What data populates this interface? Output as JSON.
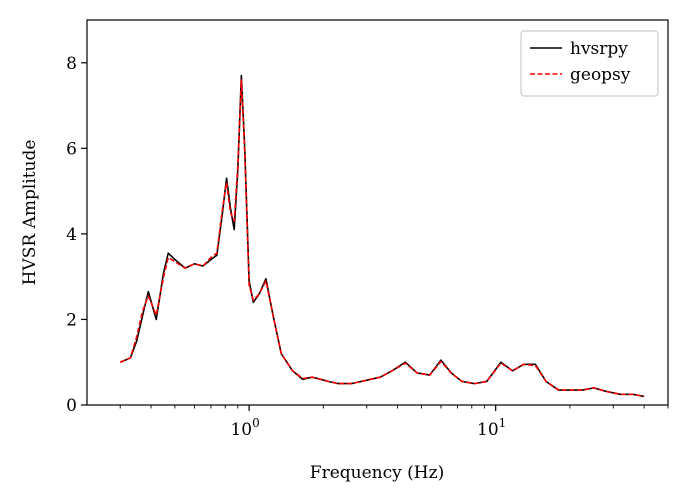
{
  "chart_data": {
    "type": "line",
    "title": "",
    "xlabel": "Frequency (Hz)",
    "ylabel": "HVSR Amplitude",
    "xscale": "log",
    "xlim": [
      0.22,
      50
    ],
    "ylim": [
      0,
      9
    ],
    "x_tick_values": [
      1,
      10
    ],
    "x_ticks": [
      {
        "base": "10",
        "exp": "0"
      },
      {
        "base": "10",
        "exp": "1"
      }
    ],
    "y_ticks": [
      "0",
      "2",
      "4",
      "6",
      "8"
    ],
    "y_tick_values": [
      0,
      2,
      4,
      6,
      8
    ],
    "grid": false,
    "legend_position": "top-right",
    "x": [
      0.3,
      0.33,
      0.35,
      0.37,
      0.39,
      0.42,
      0.45,
      0.47,
      0.5,
      0.55,
      0.6,
      0.65,
      0.7,
      0.74,
      0.78,
      0.81,
      0.84,
      0.87,
      0.9,
      0.93,
      0.96,
      1.0,
      1.04,
      1.1,
      1.17,
      1.25,
      1.35,
      1.5,
      1.65,
      1.8,
      1.95,
      2.1,
      2.3,
      2.6,
      3.0,
      3.4,
      3.8,
      4.3,
      4.8,
      5.4,
      6.0,
      6.6,
      7.3,
      8.2,
      9.2,
      10.5,
      11.7,
      13.0,
      14.5,
      16.0,
      18.0,
      20.0,
      22.5,
      25.0,
      28.0,
      32.0,
      36.0,
      40.0
    ],
    "series": [
      {
        "name": "hvsrpy",
        "color": "#000000",
        "dash": "solid",
        "values": [
          1.0,
          1.1,
          1.5,
          2.1,
          2.65,
          2.0,
          3.1,
          3.55,
          3.4,
          3.2,
          3.3,
          3.25,
          3.4,
          3.5,
          4.5,
          5.3,
          4.6,
          4.1,
          5.5,
          7.7,
          6.0,
          2.9,
          2.4,
          2.6,
          2.95,
          2.1,
          1.2,
          0.8,
          0.6,
          0.65,
          0.6,
          0.55,
          0.5,
          0.5,
          0.58,
          0.65,
          0.8,
          1.0,
          0.75,
          0.7,
          1.05,
          0.75,
          0.55,
          0.5,
          0.55,
          1.0,
          0.8,
          0.95,
          0.95,
          0.55,
          0.35,
          0.35,
          0.35,
          0.4,
          0.32,
          0.25,
          0.25,
          0.2
        ]
      },
      {
        "name": "geopsy",
        "color": "#ff0000",
        "dash": "dashed",
        "values": [
          1.0,
          1.1,
          1.6,
          2.2,
          2.55,
          2.1,
          3.0,
          3.45,
          3.35,
          3.2,
          3.3,
          3.25,
          3.45,
          3.55,
          4.6,
          5.2,
          4.5,
          4.3,
          5.6,
          7.6,
          5.9,
          2.8,
          2.45,
          2.6,
          2.9,
          2.1,
          1.2,
          0.8,
          0.62,
          0.65,
          0.6,
          0.55,
          0.5,
          0.5,
          0.58,
          0.65,
          0.8,
          0.98,
          0.75,
          0.7,
          1.02,
          0.75,
          0.55,
          0.5,
          0.55,
          0.98,
          0.8,
          0.95,
          0.92,
          0.55,
          0.35,
          0.35,
          0.35,
          0.4,
          0.32,
          0.25,
          0.25,
          0.2
        ]
      }
    ]
  }
}
